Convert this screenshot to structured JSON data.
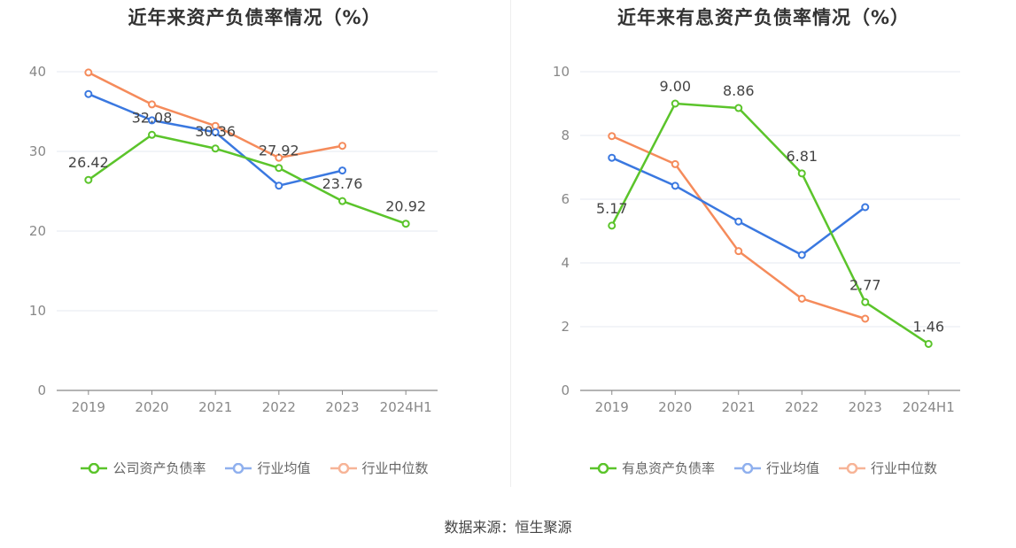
{
  "source": "数据来源：恒生聚源",
  "chart_data": [
    {
      "type": "line",
      "title": "近年来资产负债率情况（%）",
      "categories": [
        "2019",
        "2020",
        "2021",
        "2022",
        "2023",
        "2024H1"
      ],
      "ylim": [
        0,
        40
      ],
      "yticks": [
        0,
        10,
        20,
        30,
        40
      ],
      "grid": true,
      "legend_position": "bottom",
      "series": [
        {
          "name": "公司资产负债率",
          "color": "#5bc42b",
          "values": [
            26.42,
            32.08,
            30.36,
            27.92,
            23.76,
            20.92
          ],
          "labels": [
            "26.42",
            "32.08",
            "30.36",
            "27.92",
            "23.76",
            "20.92"
          ]
        },
        {
          "name": "行业均值",
          "color": "#3a78e0",
          "values": [
            37.2,
            33.9,
            32.4,
            25.7,
            27.6,
            null
          ]
        },
        {
          "name": "行业中位数",
          "color": "#f58b5b",
          "values": [
            39.9,
            35.9,
            33.2,
            29.2,
            30.7,
            null
          ]
        }
      ]
    },
    {
      "type": "line",
      "title": "近年来有息资产负债率情况（%）",
      "categories": [
        "2019",
        "2020",
        "2021",
        "2022",
        "2023",
        "2024H1"
      ],
      "ylim": [
        0,
        10
      ],
      "yticks": [
        0,
        2,
        4,
        6,
        8,
        10
      ],
      "grid": true,
      "legend_position": "bottom",
      "series": [
        {
          "name": "有息资产负债率",
          "color": "#5bc42b",
          "values": [
            5.17,
            9.0,
            8.86,
            6.81,
            2.77,
            1.46
          ],
          "labels": [
            "5.17",
            "9.00",
            "8.86",
            "6.81",
            "2.77",
            "1.46"
          ]
        },
        {
          "name": "行业均值",
          "color": "#3a78e0",
          "values": [
            7.3,
            6.42,
            5.3,
            4.25,
            5.75,
            null
          ]
        },
        {
          "name": "行业中位数",
          "color": "#f58b5b",
          "values": [
            7.98,
            7.1,
            4.37,
            2.88,
            2.25,
            null
          ]
        }
      ]
    }
  ]
}
